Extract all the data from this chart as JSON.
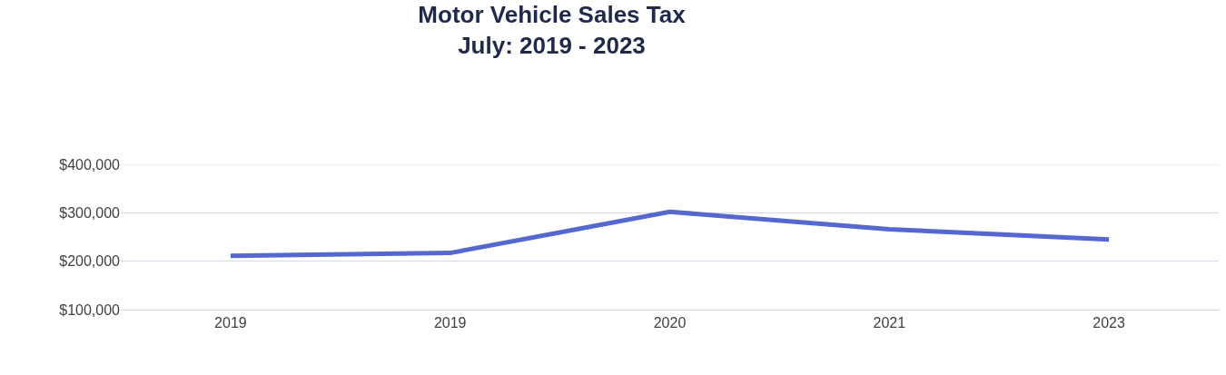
{
  "chart_data": {
    "type": "line",
    "title": "Motor Vehicle Sales Tax\nJuly: 2019 - 2023",
    "categories": [
      "2019",
      "2019",
      "2020",
      "2021",
      "2023"
    ],
    "series": [
      {
        "color": "#5468cf",
        "values": [
          211000,
          217000,
          302000,
          266000,
          245000
        ]
      }
    ],
    "ylim": [
      100000,
      400000
    ],
    "yticks": [
      {
        "value": 100000,
        "label": "$100,000"
      },
      {
        "value": 200000,
        "label": "$200,000"
      },
      {
        "value": 300000,
        "label": "$300,000"
      },
      {
        "value": 400000,
        "label": "$400,000"
      }
    ],
    "grid": "y",
    "marker": "none",
    "line_style": "solid"
  }
}
